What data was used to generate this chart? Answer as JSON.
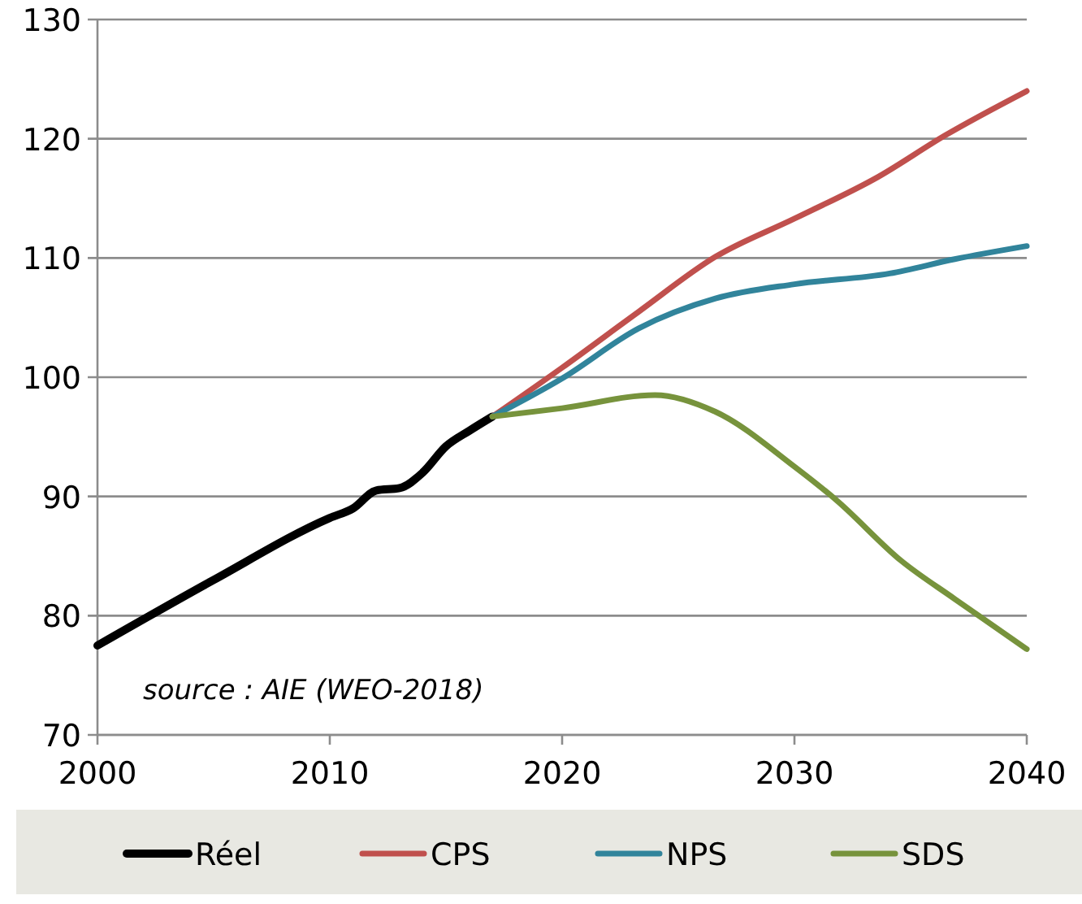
{
  "chart_data": {
    "type": "line",
    "xlim": [
      2000,
      2040
    ],
    "xticks": [
      2000,
      2010,
      2020,
      2030,
      2040
    ],
    "ylim": [
      70,
      130
    ],
    "yticks": [
      70,
      80,
      90,
      100,
      110,
      120,
      130
    ],
    "grid": "y",
    "legend": "bottom",
    "line_style": "solid",
    "marker": "none",
    "annotations": [
      "source : AIE (WEO-2018)"
    ],
    "series": [
      {
        "name": "Réel",
        "color": "#000000",
        "x": [
          2000,
          2005,
          2010,
          2011,
          2012,
          2013,
          2014,
          2015,
          2016,
          2017
        ],
        "values": [
          77.5,
          83,
          88.2,
          89,
          90.5,
          90.7,
          92,
          94.2,
          95.5,
          96.7
        ]
      },
      {
        "name": "CPS",
        "color": "#c0504d",
        "x": [
          2017,
          2020,
          2023.3,
          2026.6,
          2030,
          2033.6,
          2036.5,
          2040
        ],
        "values": [
          96.7,
          100.8,
          105.5,
          110.1,
          113.3,
          116.8,
          120.3,
          124
        ]
      },
      {
        "name": "NPS",
        "color": "#31849b",
        "x": [
          2017,
          2020,
          2023.3,
          2026.6,
          2030,
          2034.1,
          2036.9,
          2040
        ],
        "values": [
          96.7,
          99.9,
          104.1,
          106.6,
          107.8,
          108.7,
          109.9,
          111
        ]
      },
      {
        "name": "SDS",
        "color": "#77933c",
        "x": [
          2017,
          2020,
          2024,
          2026.6,
          2030,
          2031.8,
          2034.6,
          2036.9,
          2040
        ],
        "values": [
          96.7,
          97.4,
          98.5,
          97.1,
          92.5,
          89.7,
          84.6,
          81.4,
          77.2
        ]
      }
    ]
  }
}
